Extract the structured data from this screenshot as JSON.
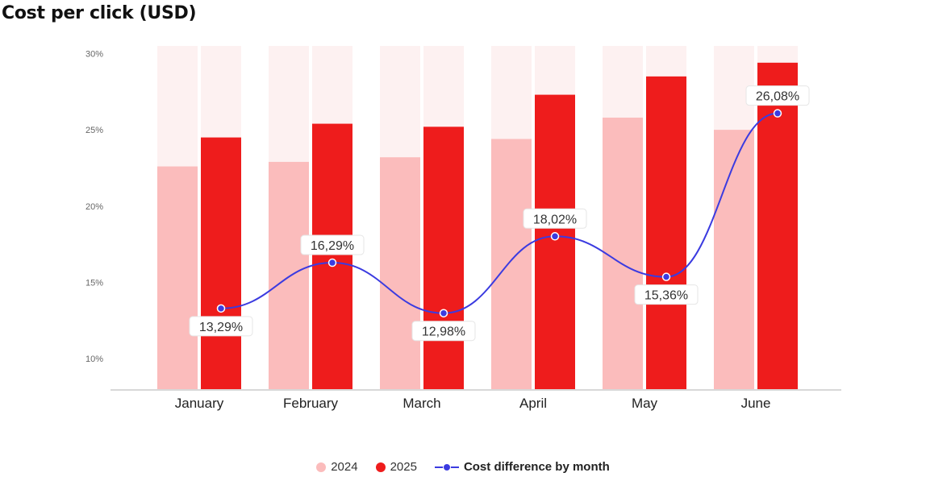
{
  "title": "Cost per click (USD)",
  "colors": {
    "s2024": "#fbbcbc",
    "s2025": "#ee1c1c",
    "track": "#fdf1f1",
    "line": "#3b3be0",
    "axis": "#cccccc"
  },
  "chart_data": {
    "type": "bar",
    "title": "Cost per click (USD)",
    "categories": [
      "January",
      "February",
      "March",
      "April",
      "May",
      "June"
    ],
    "yticks": [
      "30%",
      "25%",
      "20%",
      "15%",
      "10%"
    ],
    "ylim": [
      8,
      30.5
    ],
    "series": [
      {
        "name": "2024",
        "type": "bar",
        "values": [
          22.6,
          22.9,
          23.2,
          24.4,
          25.8,
          25.0
        ]
      },
      {
        "name": "2025",
        "type": "bar",
        "values": [
          24.5,
          25.4,
          25.2,
          27.3,
          28.5,
          29.4
        ]
      },
      {
        "name": "Cost difference by month",
        "type": "line",
        "values": [
          13.29,
          16.29,
          12.98,
          18.02,
          15.36,
          26.08
        ],
        "labels": [
          "13,29%",
          "16,29%",
          "12,98%",
          "18,02%",
          "15,36%",
          "26,08%"
        ]
      }
    ],
    "legend_position": "bottom",
    "grid": false
  },
  "legend": {
    "item1": "2024",
    "item2": "2025",
    "item3": "Cost difference by month"
  }
}
